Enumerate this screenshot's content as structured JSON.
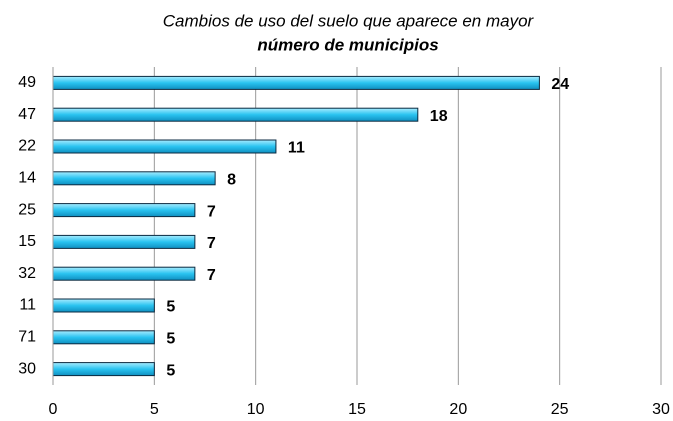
{
  "chart_data": {
    "type": "bar",
    "orientation": "horizontal",
    "title": [
      "Cambios de uso del suelo que aparece en mayor",
      "número de municipios"
    ],
    "categories": [
      "49",
      "47",
      "22",
      "14",
      "25",
      "15",
      "32",
      "11",
      "71",
      "30"
    ],
    "values": [
      24,
      18,
      11,
      8,
      7,
      7,
      7,
      5,
      5,
      5
    ],
    "color": "#29b6e6",
    "xlim": [
      0,
      30
    ],
    "xticks": [
      0,
      5,
      10,
      15,
      20,
      25,
      30
    ],
    "grid": true
  }
}
